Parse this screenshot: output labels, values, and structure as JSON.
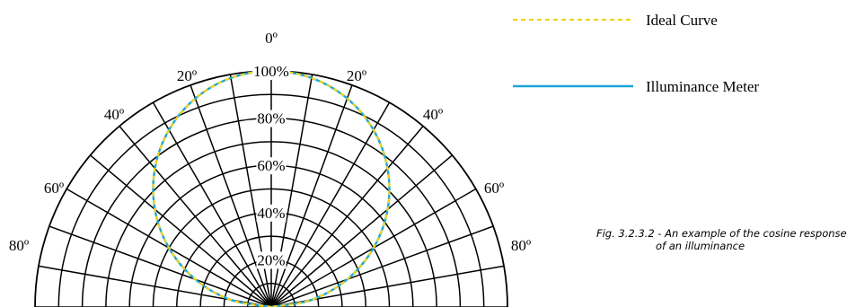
{
  "chart_data": {
    "type": "polar",
    "angle_ticks": [
      {
        "deg": 0,
        "label": "0º"
      },
      {
        "deg": -20,
        "label": "20º"
      },
      {
        "deg": 20,
        "label": "20º"
      },
      {
        "deg": -40,
        "label": "40º"
      },
      {
        "deg": 40,
        "label": "40º"
      },
      {
        "deg": -60,
        "label": "60º"
      },
      {
        "deg": 60,
        "label": "60º"
      },
      {
        "deg": -80,
        "label": "80º"
      },
      {
        "deg": 80,
        "label": "80º"
      }
    ],
    "radial_ticks": [
      {
        "value": 20,
        "label": "20%"
      },
      {
        "value": 40,
        "label": "40%"
      },
      {
        "value": 60,
        "label": "60%"
      },
      {
        "value": 80,
        "label": "80%"
      },
      {
        "value": 100,
        "label": "100%"
      }
    ],
    "radial_range": [
      0,
      100
    ],
    "angle_range": [
      -90,
      90
    ],
    "series": [
      {
        "name": "Ideal Curve",
        "color": "#f2d21b",
        "style": "dashed",
        "angles": [
          -90,
          -80,
          -70,
          -60,
          -50,
          -40,
          -30,
          -20,
          -10,
          0,
          10,
          20,
          30,
          40,
          50,
          60,
          70,
          80,
          90
        ],
        "values": [
          0,
          17.4,
          34.2,
          50,
          64.3,
          76.6,
          86.6,
          94,
          98.5,
          100,
          98.5,
          94,
          86.6,
          76.6,
          64.3,
          50,
          34.2,
          17.4,
          0
        ]
      },
      {
        "name": "Illuminance Meter",
        "color": "#1aa7d9",
        "style": "solid",
        "angles": [
          -90,
          -80,
          -70,
          -60,
          -50,
          -40,
          -30,
          -20,
          -10,
          0,
          10,
          20,
          30,
          40,
          50,
          60,
          70,
          80,
          90
        ],
        "values": [
          0,
          17.4,
          34.2,
          50,
          64.3,
          76.6,
          86.6,
          94,
          98.5,
          100,
          98.5,
          94,
          86.6,
          76.6,
          64.3,
          50,
          34.2,
          17.4,
          0
        ]
      }
    ],
    "legend_position": "top-right"
  },
  "caption": {
    "line1": "Fig. 3.2.3.2 -  An example of the cosine response",
    "line2": "of an illuminance"
  }
}
